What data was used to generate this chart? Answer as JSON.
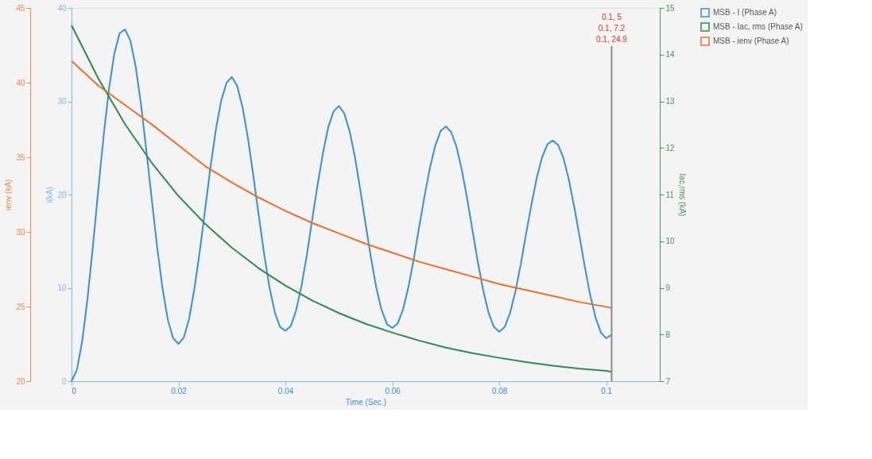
{
  "chart_data": {
    "type": "line",
    "xlabel": "Time (Sec.)",
    "ylabel": "i(kA)",
    "y2label": "Iac,rms (kA)",
    "y3label": "ienv (kA)",
    "xlim": [
      0,
      0.11
    ],
    "xticks": [
      0,
      0.02,
      0.04,
      0.06,
      0.08,
      0.1
    ],
    "ylim": [
      0,
      40
    ],
    "yticks": [
      0,
      10,
      20,
      30,
      40
    ],
    "y2lim": [
      7,
      15
    ],
    "y2ticks": [
      7,
      8,
      9,
      10,
      11,
      12,
      13,
      14,
      15
    ],
    "y3lim": [
      20,
      45
    ],
    "y3ticks": [
      20,
      25,
      30,
      35,
      40,
      45
    ],
    "grid": false,
    "legend": "right",
    "marker": "none",
    "line_style": "solid",
    "series": [
      {
        "name": "MSB - I (Phase A)",
        "color": "#3a8fd9",
        "axis": "y",
        "x": [
          0,
          0.001,
          0.002,
          0.003,
          0.004,
          0.005,
          0.006,
          0.007,
          0.008,
          0.009,
          0.01,
          0.011,
          0.012,
          0.013,
          0.014,
          0.015,
          0.016,
          0.017,
          0.018,
          0.019,
          0.02,
          0.021,
          0.022,
          0.023,
          0.024,
          0.025,
          0.026,
          0.027,
          0.028,
          0.029,
          0.03,
          0.031,
          0.032,
          0.033,
          0.034,
          0.035,
          0.036,
          0.037,
          0.038,
          0.039,
          0.04,
          0.041,
          0.042,
          0.043,
          0.044,
          0.045,
          0.046,
          0.047,
          0.048,
          0.049,
          0.05,
          0.051,
          0.052,
          0.053,
          0.054,
          0.055,
          0.056,
          0.057,
          0.058,
          0.059,
          0.06,
          0.061,
          0.062,
          0.063,
          0.064,
          0.065,
          0.066,
          0.067,
          0.068,
          0.069,
          0.07,
          0.071,
          0.072,
          0.073,
          0.074,
          0.075,
          0.076,
          0.077,
          0.078,
          0.079,
          0.08,
          0.081,
          0.082,
          0.083,
          0.084,
          0.085,
          0.086,
          0.087,
          0.088,
          0.089,
          0.09,
          0.091,
          0.092,
          0.093,
          0.094,
          0.095,
          0.096,
          0.097,
          0.098,
          0.099,
          0.1,
          0.101
        ],
        "values": [
          0,
          1.2,
          4.3,
          8.9,
          14.5,
          20.5,
          26.3,
          31.3,
          35.1,
          37.3,
          37.7,
          36.5,
          33.7,
          29.6,
          24.7,
          19.5,
          14.4,
          10.0,
          6.6,
          4.6,
          4.0,
          4.7,
          6.7,
          10.0,
          14.0,
          18.5,
          23.0,
          27.0,
          30.1,
          32.0,
          32.6,
          31.6,
          29.3,
          26.0,
          22.0,
          17.8,
          13.7,
          10.1,
          7.4,
          5.8,
          5.4,
          5.9,
          7.6,
          10.2,
          13.5,
          17.3,
          21.0,
          24.4,
          27.2,
          28.9,
          29.5,
          28.7,
          26.8,
          24.0,
          20.5,
          16.8,
          13.2,
          10.0,
          7.6,
          6.1,
          5.7,
          6.2,
          7.7,
          10.1,
          13.1,
          16.5,
          19.8,
          22.8,
          25.2,
          26.8,
          27.3,
          26.7,
          25.1,
          22.6,
          19.5,
          16.1,
          12.7,
          9.7,
          7.3,
          5.8,
          5.3,
          5.8,
          7.3,
          9.6,
          12.5,
          15.8,
          18.9,
          21.8,
          24.0,
          25.4,
          25.8,
          25.3,
          23.9,
          21.6,
          18.7,
          15.5,
          12.2,
          9.2,
          6.8,
          5.2,
          4.6,
          5.0
        ]
      },
      {
        "name": "MSB - Iac, rms (Phase A)",
        "color": "#2e8b4e",
        "axis": "y2",
        "x": [
          0,
          0.005,
          0.01,
          0.015,
          0.02,
          0.025,
          0.03,
          0.035,
          0.04,
          0.045,
          0.05,
          0.055,
          0.06,
          0.065,
          0.07,
          0.075,
          0.08,
          0.085,
          0.09,
          0.095,
          0.1,
          0.101
        ],
        "values": [
          14.63,
          13.49,
          12.51,
          11.68,
          10.97,
          10.37,
          9.86,
          9.42,
          9.05,
          8.73,
          8.46,
          8.23,
          8.04,
          7.87,
          7.72,
          7.6,
          7.5,
          7.41,
          7.33,
          7.27,
          7.22,
          7.2
        ]
      },
      {
        "name": "MSB - ienv (Phase A)",
        "color": "#e8702a",
        "axis": "y3",
        "x": [
          0,
          0.005,
          0.01,
          0.015,
          0.02,
          0.025,
          0.03,
          0.035,
          0.04,
          0.045,
          0.05,
          0.055,
          0.06,
          0.065,
          0.07,
          0.075,
          0.08,
          0.085,
          0.09,
          0.095,
          0.1,
          0.101
        ],
        "values": [
          41.45,
          39.8,
          38.5,
          37.2,
          35.8,
          34.4,
          33.3,
          32.3,
          31.4,
          30.6,
          29.9,
          29.2,
          28.6,
          28.0,
          27.5,
          27.0,
          26.5,
          26.1,
          25.7,
          25.3,
          24.98,
          24.9
        ]
      }
    ],
    "ref_lines": [
      {
        "axis": "x",
        "value": 0.101,
        "color": "#8a8a8a"
      }
    ],
    "annotations": [
      "0.1, 5",
      "0.1, 7.2",
      "0.1, 24.9"
    ]
  }
}
